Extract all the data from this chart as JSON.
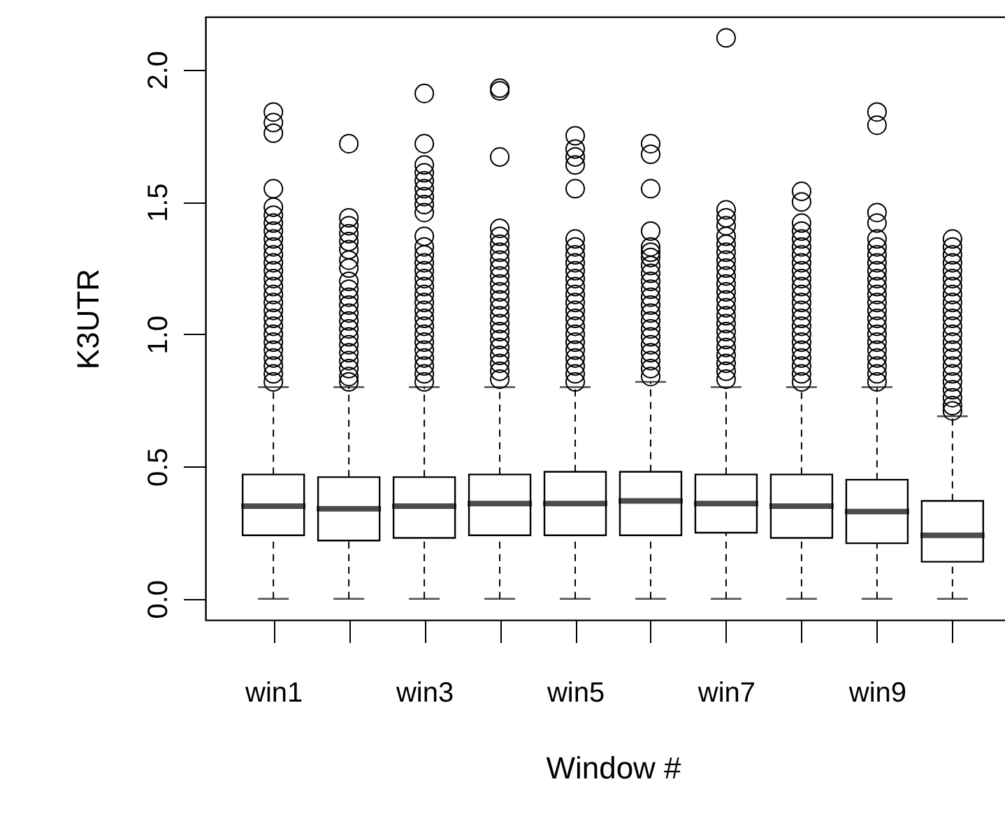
{
  "chart_data": {
    "type": "box",
    "xlabel": "Window #",
    "ylabel": "K3UTR",
    "categories": [
      "win1",
      null,
      "win3",
      null,
      "win5",
      null,
      "win7",
      null,
      "win9",
      null
    ],
    "ylim": [
      -0.08,
      2.2
    ],
    "yticks": [
      {
        "value": 0,
        "label": "0.0"
      },
      0.5,
      {
        "value": 1,
        "label": "1.0"
      },
      1.5,
      {
        "value": 2,
        "label": "2.0"
      }
    ],
    "boxes": [
      {
        "low": 0,
        "q1": 0.24,
        "median": 0.35,
        "q3": 0.47,
        "high": 0.8,
        "outliers": [
          1.84,
          1.8,
          1.76,
          1.55,
          1.48,
          1.45,
          1.42,
          1.39,
          1.36,
          1.33,
          1.3,
          1.27,
          1.24,
          1.21,
          1.18,
          1.15,
          1.12,
          1.09,
          1.06,
          1.03,
          1.0,
          0.97,
          0.94,
          0.91,
          0.88,
          0.85,
          0.82
        ]
      },
      {
        "low": 0,
        "q1": 0.22,
        "median": 0.34,
        "q3": 0.46,
        "high": 0.8,
        "outliers": [
          1.72,
          1.44,
          1.41,
          1.38,
          1.35,
          1.32,
          1.28,
          1.25,
          1.2,
          1.17,
          1.14,
          1.11,
          1.08,
          1.05,
          1.02,
          0.99,
          0.96,
          0.93,
          0.9,
          0.87,
          0.84,
          0.82
        ]
      },
      {
        "low": 0,
        "q1": 0.23,
        "median": 0.35,
        "q3": 0.46,
        "high": 0.8,
        "outliers": [
          1.91,
          1.72,
          1.64,
          1.61,
          1.58,
          1.55,
          1.52,
          1.49,
          1.46,
          1.37,
          1.33,
          1.3,
          1.27,
          1.24,
          1.21,
          1.18,
          1.15,
          1.12,
          1.09,
          1.06,
          1.03,
          1.0,
          0.97,
          0.94,
          0.91,
          0.88,
          0.85,
          0.82
        ]
      },
      {
        "low": 0,
        "q1": 0.24,
        "median": 0.36,
        "q3": 0.47,
        "high": 0.8,
        "outliers": [
          1.93,
          1.92,
          1.67,
          1.4,
          1.37,
          1.34,
          1.31,
          1.28,
          1.25,
          1.22,
          1.19,
          1.16,
          1.13,
          1.1,
          1.07,
          1.04,
          1.01,
          0.98,
          0.95,
          0.92,
          0.89,
          0.86,
          0.83
        ]
      },
      {
        "low": 0,
        "q1": 0.24,
        "median": 0.36,
        "q3": 0.48,
        "high": 0.8,
        "outliers": [
          1.75,
          1.7,
          1.67,
          1.64,
          1.55,
          1.36,
          1.33,
          1.3,
          1.27,
          1.24,
          1.21,
          1.18,
          1.15,
          1.12,
          1.09,
          1.06,
          1.03,
          1.0,
          0.97,
          0.94,
          0.91,
          0.88,
          0.85,
          0.82
        ]
      },
      {
        "low": 0,
        "q1": 0.24,
        "median": 0.37,
        "q3": 0.48,
        "high": 0.82,
        "outliers": [
          1.72,
          1.68,
          1.55,
          1.39,
          1.33,
          1.31,
          1.29,
          1.26,
          1.23,
          1.2,
          1.17,
          1.14,
          1.11,
          1.08,
          1.05,
          1.02,
          0.99,
          0.96,
          0.93,
          0.9,
          0.87,
          0.84
        ]
      },
      {
        "low": 0,
        "q1": 0.25,
        "median": 0.36,
        "q3": 0.47,
        "high": 0.8,
        "outliers": [
          2.12,
          1.47,
          1.44,
          1.41,
          1.37,
          1.34,
          1.31,
          1.28,
          1.25,
          1.22,
          1.19,
          1.16,
          1.13,
          1.1,
          1.07,
          1.04,
          1.01,
          0.98,
          0.95,
          0.92,
          0.89,
          0.86,
          0.83
        ]
      },
      {
        "low": 0,
        "q1": 0.23,
        "median": 0.35,
        "q3": 0.47,
        "high": 0.8,
        "outliers": [
          1.54,
          1.5,
          1.42,
          1.39,
          1.36,
          1.33,
          1.3,
          1.27,
          1.24,
          1.21,
          1.18,
          1.15,
          1.12,
          1.09,
          1.06,
          1.03,
          1.0,
          0.97,
          0.94,
          0.91,
          0.88,
          0.85,
          0.82
        ]
      },
      {
        "low": 0,
        "q1": 0.21,
        "median": 0.33,
        "q3": 0.45,
        "high": 0.8,
        "outliers": [
          1.84,
          1.79,
          1.46,
          1.42,
          1.36,
          1.33,
          1.3,
          1.27,
          1.24,
          1.21,
          1.18,
          1.15,
          1.12,
          1.09,
          1.06,
          1.03,
          1.0,
          0.97,
          0.94,
          0.91,
          0.88,
          0.85,
          0.82
        ]
      },
      {
        "low": 0,
        "q1": 0.14,
        "median": 0.24,
        "q3": 0.37,
        "high": 0.69,
        "outliers": [
          1.36,
          1.33,
          1.3,
          1.27,
          1.24,
          1.21,
          1.18,
          1.15,
          1.12,
          1.09,
          1.06,
          1.03,
          1.0,
          0.97,
          0.94,
          0.91,
          0.88,
          0.85,
          0.82,
          0.79,
          0.76,
          0.73,
          0.71
        ]
      }
    ]
  }
}
